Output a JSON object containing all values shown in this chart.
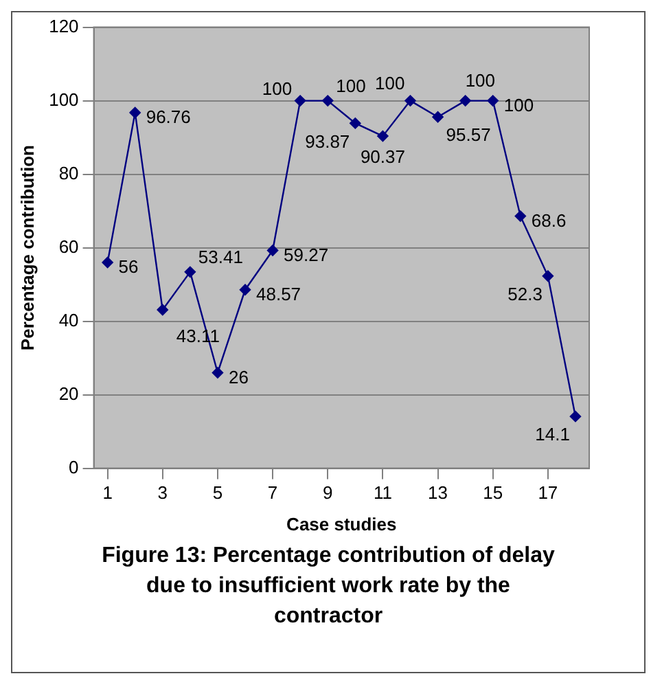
{
  "chart_data": {
    "type": "line",
    "title": "Figure 13: Percentage contribution of delay due to insufficient work rate by the contractor",
    "xlabel": "Case studies",
    "ylabel": "Percentage contribution",
    "x": [
      1,
      2,
      3,
      4,
      5,
      6,
      7,
      8,
      9,
      10,
      11,
      12,
      13,
      14,
      15,
      16,
      17,
      18
    ],
    "xlim": [
      0.5,
      18.5
    ],
    "xticks": [
      1,
      3,
      5,
      7,
      9,
      11,
      13,
      15,
      17
    ],
    "series": [
      {
        "color": "#000080",
        "values": [
          56,
          96.76,
          43.11,
          53.41,
          26,
          48.57,
          59.27,
          100,
          100,
          93.87,
          90.37,
          100,
          95.57,
          100,
          100,
          68.6,
          52.3,
          14.1
        ]
      }
    ],
    "ylim": [
      0,
      120
    ],
    "yticks": [
      0,
      20,
      40,
      60,
      80,
      100,
      120
    ],
    "grid": "y",
    "marker": "diamond",
    "line_style": "solid",
    "legend": false,
    "data_labels": true
  }
}
